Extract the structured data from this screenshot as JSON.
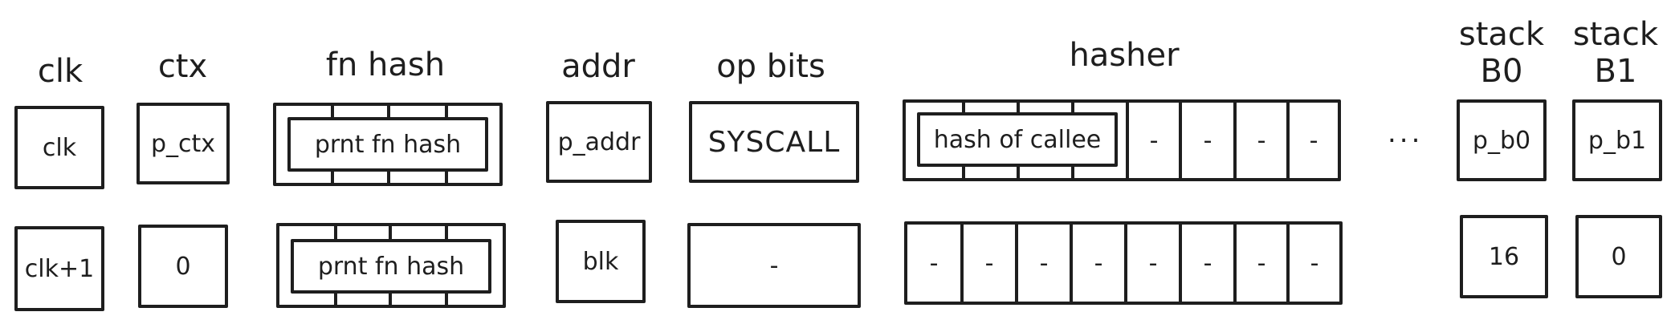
{
  "headers": {
    "clk": "clk",
    "ctx": "ctx",
    "fn_hash": "fn hash",
    "addr": "addr",
    "op_bits": "op bits",
    "hasher": "hasher",
    "stack_b0_line1": "stack",
    "stack_b0_line2": "B0",
    "stack_b1_line1": "stack",
    "stack_b1_line2": "B1"
  },
  "row1": {
    "clk": "clk",
    "ctx": "p_ctx",
    "fn_hash": "prnt fn hash",
    "addr": "p_addr",
    "op_bits": "SYSCALL",
    "hasher_first": "hash of callee",
    "hasher_rest": [
      "-",
      "-",
      "-",
      "-"
    ],
    "stack_b0": "p_b0",
    "stack_b1": "p_b1"
  },
  "row2": {
    "clk": "clk+1",
    "ctx": "0",
    "fn_hash": "prnt fn hash",
    "addr": "blk",
    "op_bits": "-",
    "hasher": [
      "-",
      "-",
      "-",
      "-",
      "-",
      "-",
      "-",
      "-"
    ],
    "stack_b0": "16",
    "stack_b1": "0"
  },
  "ellipsis": "..."
}
